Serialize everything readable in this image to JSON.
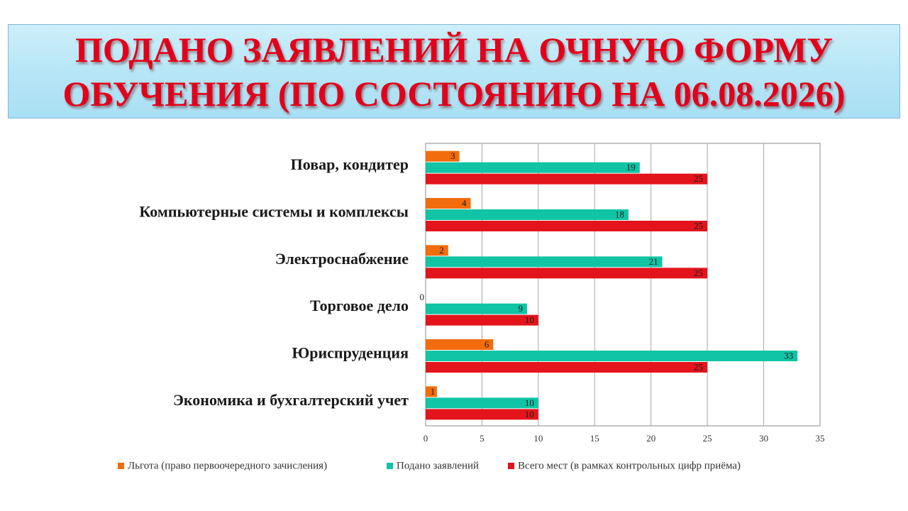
{
  "header": {
    "title_line1": "ПОДАНО ЗАЯВЛЕНИЙ НА ОЧНУЮ ФОРМУ",
    "title_line2": "ОБУЧЕНИЯ (ПО СОСТОЯНИЮ НА 06.08.2026)"
  },
  "chart_data": {
    "type": "bar",
    "orientation": "horizontal",
    "categories": [
      "Повар, кондитер",
      "Компьютерные системы и комплексы",
      "Электроснабжение",
      "Торговое дело",
      "Юриспруденция",
      "Экономика и бухгалтерский учет"
    ],
    "series": [
      {
        "name": "Льгота (право первоочередного зачисления)",
        "color": "#f26c0d",
        "values": [
          3,
          4,
          2,
          0,
          6,
          1
        ]
      },
      {
        "name": "Подано заявлений",
        "color": "#10c4a5",
        "values": [
          19,
          18,
          21,
          9,
          33,
          10
        ]
      },
      {
        "name": "Всего мест (в рамках контрольных цифр приёма)",
        "color": "#e3141c",
        "values": [
          25,
          25,
          25,
          10,
          25,
          10
        ]
      }
    ],
    "xlim": [
      0,
      35
    ],
    "xticks": [
      0,
      5,
      10,
      15,
      20,
      25,
      30,
      35
    ],
    "grid": "vertical",
    "legend_position": "bottom",
    "data_labels": true
  }
}
